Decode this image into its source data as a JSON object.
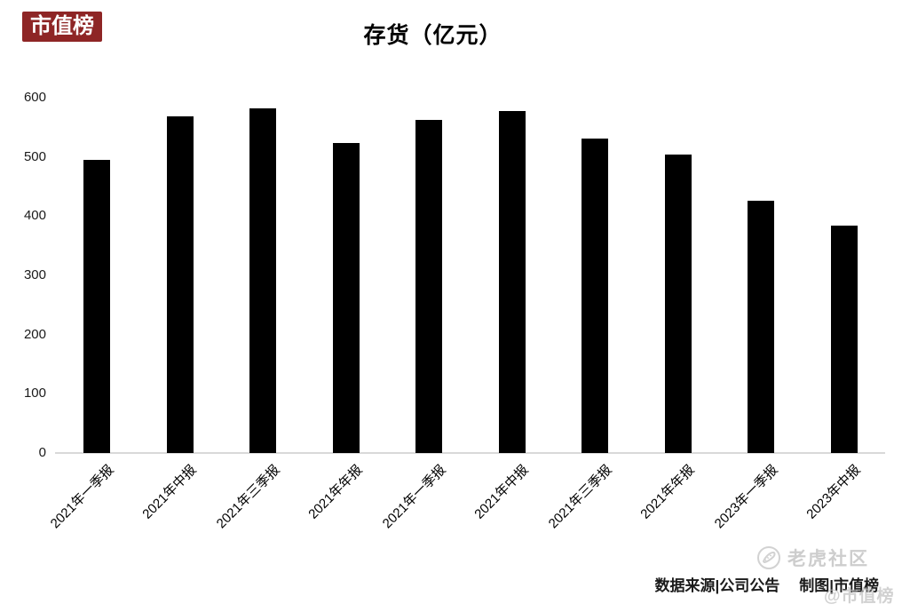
{
  "brand": {
    "logo_text": "市值榜",
    "logo_bg": "#8e2525",
    "logo_fg": "#ffffff"
  },
  "chart_data": {
    "type": "bar",
    "title": "存货（亿元）",
    "categories": [
      "2021年一季报",
      "2021年中报",
      "2021年三季报",
      "2021年年报",
      "2021年一季报",
      "2021年中报",
      "2021年三季报",
      "2021年年报",
      "2023年一季报",
      "2023年中报"
    ],
    "values": [
      495,
      568,
      582,
      524,
      562,
      578,
      531,
      504,
      426,
      384
    ],
    "xlabel": "",
    "ylabel": "",
    "ylim": [
      0,
      600
    ],
    "yticks": [
      0,
      100,
      200,
      300,
      400,
      500,
      600
    ],
    "grid": false,
    "legend": false,
    "bar_color": "#000000",
    "axis_line_color": "#d9d9d9"
  },
  "footer": {
    "source_label": "数据来源|公司公告",
    "credit_label": "制图|市值榜",
    "watermark_text": "老虎社区",
    "watermark_overlay": "@市值榜",
    "watermark_color": "#cdcdcd"
  }
}
